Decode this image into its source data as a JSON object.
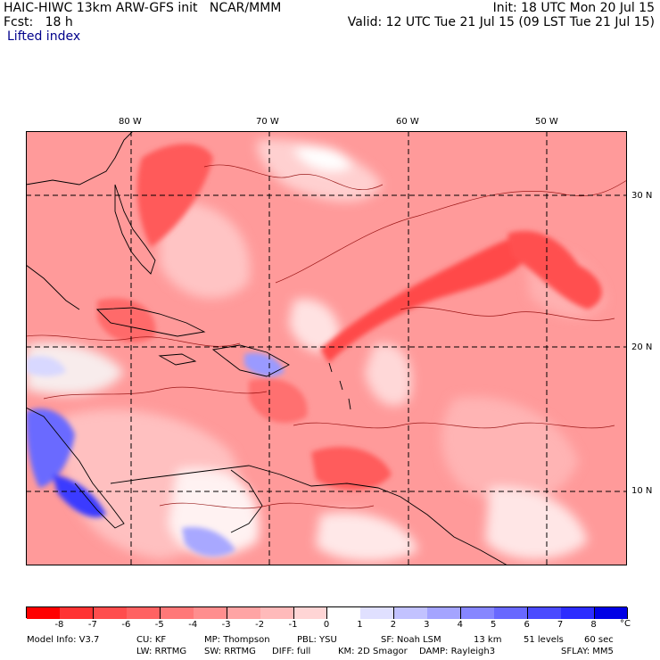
{
  "header": {
    "model_line": "HAIC-HIWC 13km ARW-GFS init   NCAR/MMM",
    "fcst_line": "Fcst:   18 h",
    "init_line": "Init: 18 UTC Mon 20 Jul 15",
    "valid_line": "Valid: 12 UTC Tue 21 Jul 15 (09 LST Tue 21 Jul 15)",
    "field_name": "Lifted index"
  },
  "map": {
    "lon_labels": [
      "80 W",
      "70 W",
      "60 W",
      "50 W"
    ],
    "lat_labels": [
      "30 N",
      "20 N",
      "10 N"
    ]
  },
  "colorbar": {
    "unit": "°C",
    "ticks": [
      "-8",
      "-7",
      "-6",
      "-5",
      "-4",
      "-3",
      "-2",
      "-1",
      "0",
      "1",
      "2",
      "3",
      "4",
      "5",
      "6",
      "7",
      "8"
    ],
    "colors": [
      "#ff0000",
      "#ff3333",
      "#ff4d4d",
      "#ff6262",
      "#ff7878",
      "#ff8e8e",
      "#ffa4a4",
      "#ffbaba",
      "#ffd5d5",
      "#ffffff",
      "#e0e0ff",
      "#c2c2ff",
      "#a4a4ff",
      "#8686ff",
      "#6868ff",
      "#4a4aff",
      "#2c2cff",
      "#0000e6"
    ]
  },
  "footer": {
    "line1": [
      "Model Info: V3.7",
      "CU: KF",
      "MP: Thompson",
      "PBL: YSU",
      "SF: Noah LSM",
      "13 km",
      "51 levels",
      "60 sec"
    ],
    "line2": [
      "LW: RRTMG",
      "SW: RRTMG",
      "DIFF: full",
      "KM: 2D Smagor",
      "DAMP: Rayleigh3",
      "SFLAY: MM5"
    ]
  }
}
